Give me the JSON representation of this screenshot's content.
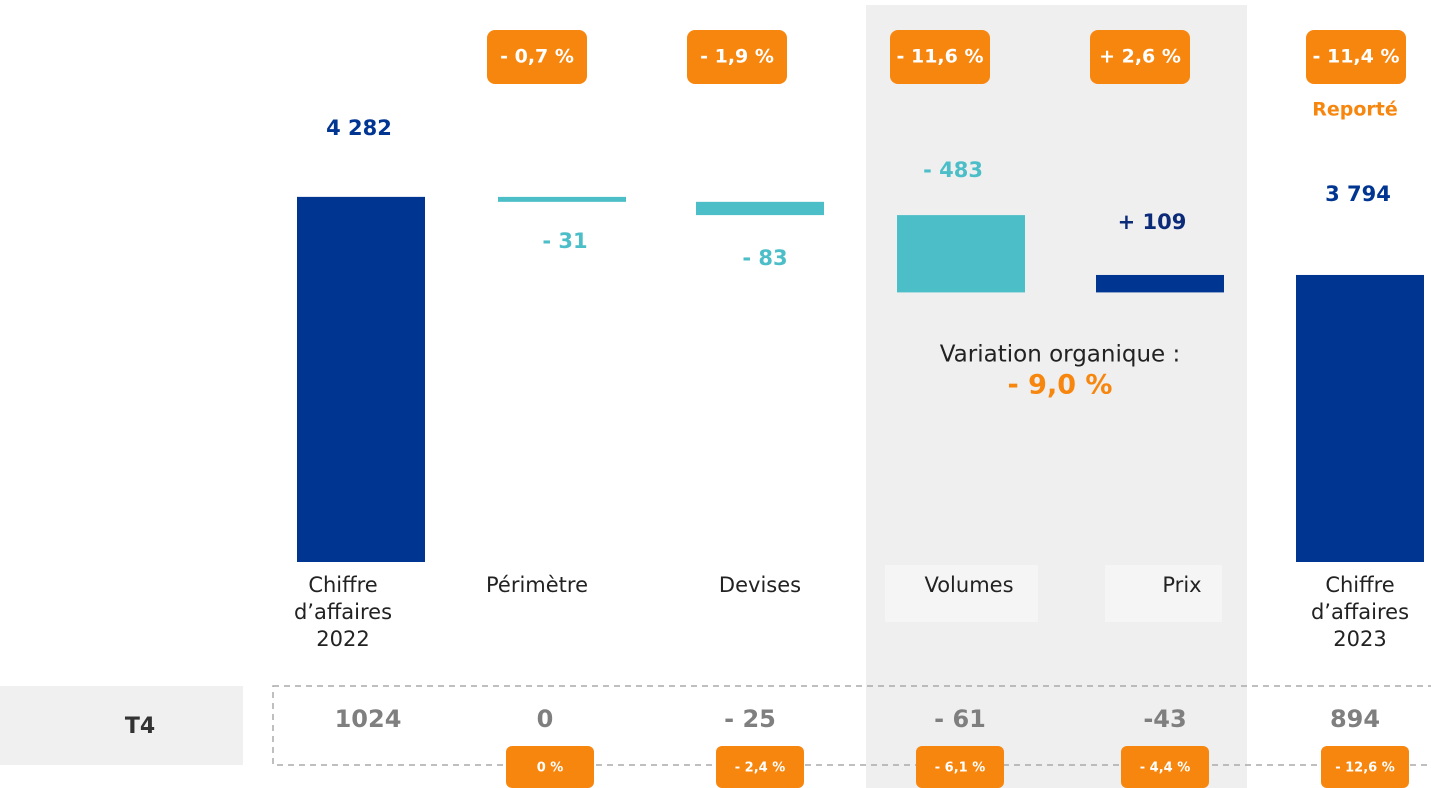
{
  "chart_data": {
    "type": "waterfall",
    "categories": [
      "Chiffre d’affaires 2022",
      "Périmètre",
      "Devises",
      "Volumes",
      "Prix",
      "Chiffre d’affaires 2023"
    ],
    "values": [
      4282,
      -31,
      -83,
      -483,
      109,
      3794
    ],
    "value_labels": [
      "4 282",
      "- 31",
      "- 83",
      "- 483",
      "+ 109",
      "3 794"
    ],
    "ylim": [
      2000,
      4400
    ],
    "colors": {
      "total": "#003591",
      "increase": "#003591",
      "decrease": "#4bbec8"
    },
    "change_labels": [
      null,
      "- 0,7 %",
      "- 1,9 %",
      "- 11,6 %",
      "+ 2,6 %",
      "- 11,4 %"
    ],
    "reported_label": "Reporté",
    "annotation": {
      "text": "Variation organique :",
      "value": "- 9,0 %"
    },
    "quarter_row": {
      "label": "T4",
      "values": [
        "1024",
        "0",
        "- 25",
        "- 61",
        "-43",
        "894"
      ],
      "changes": [
        null,
        "0 %",
        "- 2,4 %",
        "- 6,1 %",
        "- 4,4 %",
        "- 12,6 %"
      ]
    }
  }
}
